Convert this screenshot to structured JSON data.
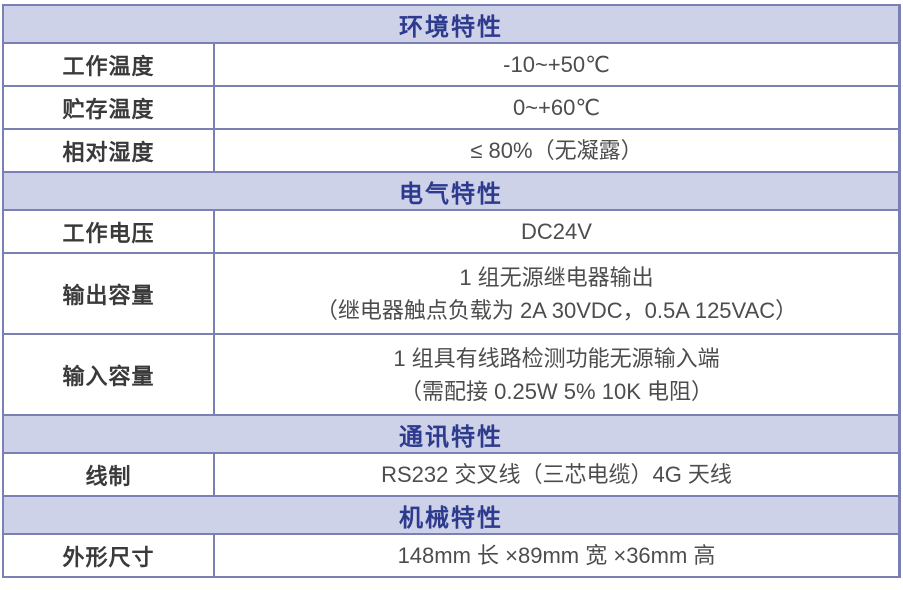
{
  "table": {
    "colors": {
      "border": "#7b80b4",
      "header_bg": "#cdd2e9",
      "header_text": "#2d3a8d",
      "label_text": "#3a3a3a",
      "value_text": "#4d4d4d"
    },
    "sections": [
      {
        "title": "环境特性",
        "rows": [
          {
            "label": "工作温度",
            "value_lines": [
              "-10~+50℃"
            ]
          },
          {
            "label": "贮存温度",
            "value_lines": [
              "0~+60℃"
            ]
          },
          {
            "label": "相对湿度",
            "value_lines": [
              "≤ 80%（无凝露）"
            ]
          }
        ]
      },
      {
        "title": "电气特性",
        "rows": [
          {
            "label": "工作电压",
            "value_lines": [
              "DC24V"
            ]
          },
          {
            "label": "输出容量",
            "value_lines": [
              "1 组无源继电器输出",
              "（继电器触点负载为 2A 30VDC，0.5A 125VAC）"
            ]
          },
          {
            "label": "输入容量",
            "value_lines": [
              "1 组具有线路检测功能无源输入端",
              "（需配接 0.25W 5% 10K 电阻）"
            ]
          }
        ]
      },
      {
        "title": "通讯特性",
        "rows": [
          {
            "label": "线制",
            "value_lines": [
              "RS232 交叉线（三芯电缆）4G 天线"
            ]
          }
        ]
      },
      {
        "title": "机械特性",
        "rows": [
          {
            "label": "外形尺寸",
            "value_lines": [
              "148mm 长 ×89mm 宽 ×36mm 高"
            ]
          }
        ]
      }
    ]
  }
}
